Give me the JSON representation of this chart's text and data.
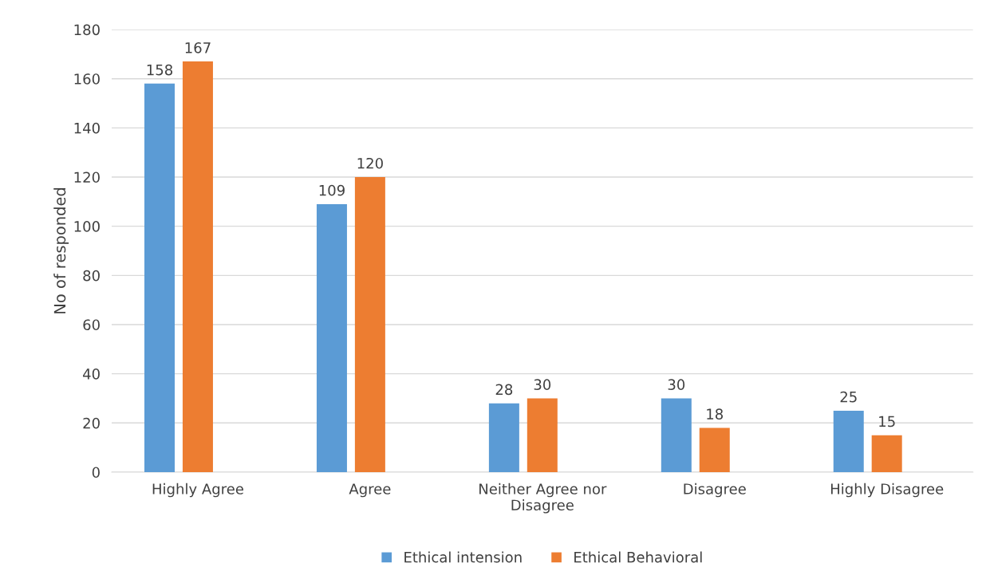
{
  "chart_data": {
    "type": "bar",
    "ylabel": "No of responded",
    "categories": [
      "Highly Agree",
      "Agree",
      "Neither Agree nor\nDisagree",
      "Disagree",
      "Highly Disagree"
    ],
    "series": [
      {
        "name": "Ethical intension",
        "color": "#5b9bd5",
        "values": [
          158,
          109,
          28,
          30,
          25
        ]
      },
      {
        "name": "Ethical Behavioral",
        "color": "#ed7d31",
        "values": [
          167,
          120,
          30,
          18,
          15
        ]
      }
    ],
    "ylim": [
      0,
      180
    ],
    "yticks": [
      0,
      20,
      40,
      60,
      80,
      100,
      120,
      140,
      160,
      180
    ],
    "grid": "y",
    "legend": "bottom",
    "data_labels": true
  }
}
